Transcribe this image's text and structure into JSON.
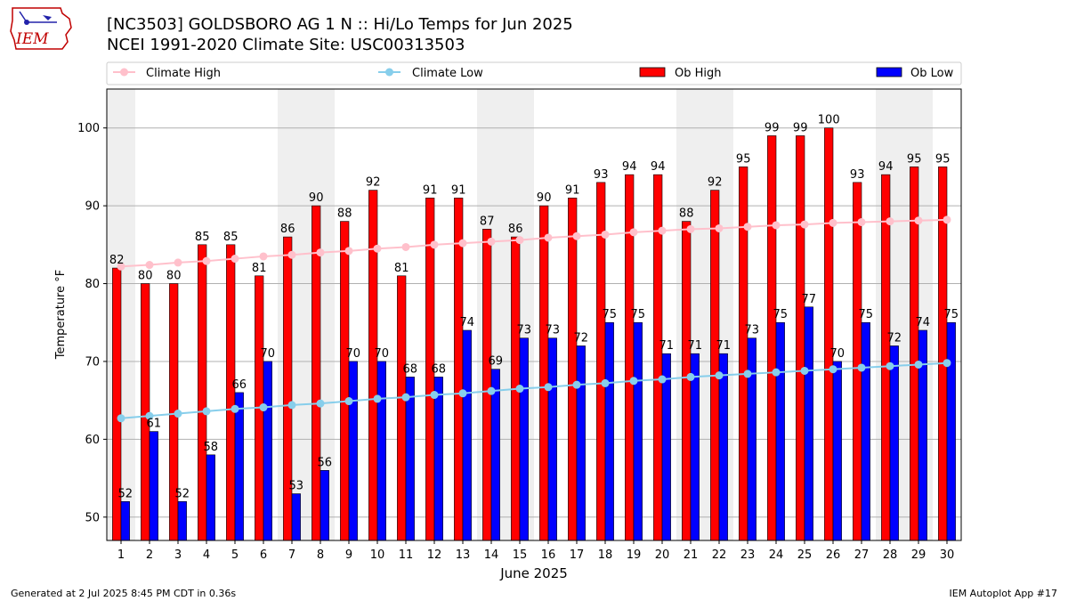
{
  "header": {
    "title_line1": "[NC3503] GOLDSBORO AG 1 N :: Hi/Lo Temps for Jun 2025",
    "title_line2": "NCEI 1991-2020 Climate Site: USC00313503",
    "logo_text": "IEM"
  },
  "footer": {
    "generated": "Generated at 2 Jul 2025 8:45 PM CDT in 0.36s",
    "app": "IEM Autoplot App #17"
  },
  "colors": {
    "ob_high": "#ff0000",
    "ob_low": "#0000ff",
    "climate_high": "#ffc0cb",
    "climate_low": "#87ceeb",
    "weekend_shade": "#efefef",
    "grid": "#b0b0b0"
  },
  "chart_data": {
    "type": "bar",
    "xlabel": "June 2025",
    "ylabel": "Temperature °F",
    "ylim": [
      47,
      105
    ],
    "yticks": [
      50,
      60,
      70,
      80,
      90,
      100
    ],
    "grid": "horizontal",
    "legend_placement": "top",
    "categories": [
      "1",
      "2",
      "3",
      "4",
      "5",
      "6",
      "7",
      "8",
      "9",
      "10",
      "11",
      "12",
      "13",
      "14",
      "15",
      "16",
      "17",
      "18",
      "19",
      "20",
      "21",
      "22",
      "23",
      "24",
      "25",
      "26",
      "27",
      "28",
      "29",
      "30"
    ],
    "shaded_days": [
      1,
      7,
      8,
      14,
      15,
      21,
      22,
      28,
      29
    ],
    "series": [
      {
        "name": "Ob High",
        "type": "bar",
        "values": [
          82,
          80,
          80,
          85,
          85,
          81,
          86,
          90,
          88,
          92,
          81,
          91,
          91,
          87,
          86,
          90,
          91,
          93,
          94,
          94,
          88,
          92,
          95,
          99,
          99,
          100,
          93,
          94,
          95,
          95
        ]
      },
      {
        "name": "Ob Low",
        "type": "bar",
        "values": [
          52,
          61,
          52,
          58,
          66,
          70,
          53,
          56,
          70,
          70,
          68,
          68,
          74,
          69,
          73,
          73,
          72,
          75,
          75,
          71,
          71,
          71,
          73,
          75,
          77,
          70,
          75,
          72,
          74,
          75
        ]
      },
      {
        "name": "Climate High",
        "type": "line",
        "values": [
          82.2,
          82.4,
          82.7,
          82.9,
          83.2,
          83.5,
          83.7,
          84.0,
          84.2,
          84.5,
          84.7,
          85.0,
          85.2,
          85.4,
          85.6,
          85.9,
          86.1,
          86.3,
          86.6,
          86.8,
          87.0,
          87.1,
          87.3,
          87.5,
          87.6,
          87.8,
          87.9,
          88.0,
          88.1,
          88.2
        ]
      },
      {
        "name": "Climate Low",
        "type": "line",
        "values": [
          62.7,
          63.0,
          63.3,
          63.6,
          63.9,
          64.1,
          64.4,
          64.6,
          64.9,
          65.2,
          65.4,
          65.7,
          65.9,
          66.2,
          66.5,
          66.7,
          67.0,
          67.2,
          67.5,
          67.7,
          68.0,
          68.2,
          68.4,
          68.6,
          68.8,
          69.0,
          69.2,
          69.4,
          69.6,
          69.8
        ]
      }
    ]
  }
}
